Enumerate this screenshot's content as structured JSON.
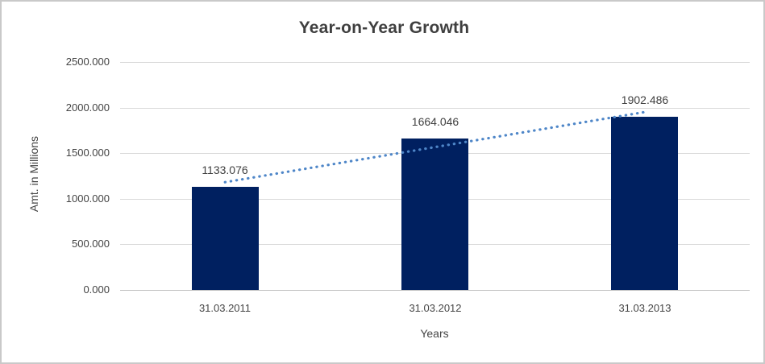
{
  "chart_data": {
    "type": "bar",
    "title": "Year-on-Year Growth",
    "xlabel": "Years",
    "ylabel": "Amt. in Millions",
    "categories": [
      "31.03.2011",
      "31.03.2012",
      "31.03.2013"
    ],
    "values": [
      1133.076,
      1664.046,
      1902.486
    ],
    "data_labels": [
      "1133.076",
      "1664.046",
      "1902.486"
    ],
    "ylim": [
      0,
      2500
    ],
    "ytick_step": 500,
    "ytick_labels": [
      "0.000",
      "500.000",
      "1000.000",
      "1500.000",
      "2000.000",
      "2500.000"
    ],
    "grid": true,
    "legend": "none",
    "colors": {
      "bar": "#002060",
      "trendline": "#4e86c8",
      "gridline": "#d9d9d9",
      "axis_line": "#bfbfbf",
      "text": "#404040"
    },
    "trendline": {
      "kind": "linear",
      "style": "dotted"
    }
  }
}
